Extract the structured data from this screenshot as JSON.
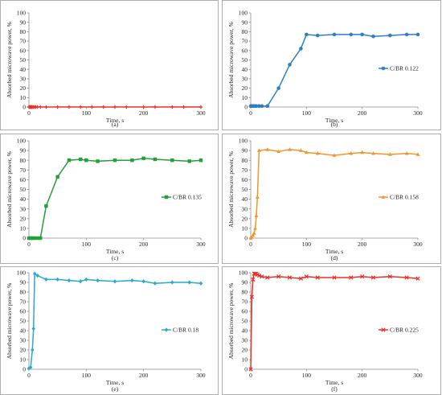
{
  "chart_data": [
    {
      "type": "line",
      "panel_label": "(a)",
      "xlabel": "Time, s",
      "ylabel": "Absorbed microwave power, %",
      "xlim": [
        0,
        300
      ],
      "ylim": [
        0,
        100
      ],
      "xticks": [
        0,
        100,
        200,
        300
      ],
      "yticks": [
        0,
        10,
        20,
        30,
        40,
        50,
        60,
        70,
        80,
        90,
        100
      ],
      "legend": null,
      "color": "#e8302a",
      "marker": "plus",
      "series": [
        {
          "x": [
            0,
            1,
            2,
            3,
            4,
            5,
            6,
            8,
            10,
            12,
            15,
            20,
            30,
            50,
            70,
            90,
            110,
            130,
            150,
            170,
            200,
            220,
            250,
            270,
            300
          ],
          "values": [
            0,
            0,
            0,
            0,
            0,
            0,
            0,
            0,
            0,
            0,
            0,
            0,
            0,
            0,
            0,
            0,
            0,
            0,
            0,
            0,
            0,
            0,
            0,
            0,
            0
          ]
        }
      ]
    },
    {
      "type": "line",
      "panel_label": "(b)",
      "xlabel": "Time, s",
      "ylabel": "Absorbed microwave power, %",
      "xlim": [
        0,
        300
      ],
      "ylim": [
        0,
        100
      ],
      "xticks": [
        0,
        100,
        200,
        300
      ],
      "yticks": [
        0,
        10,
        20,
        30,
        40,
        50,
        60,
        70,
        80,
        90,
        100
      ],
      "legend": "C/BR 0.122",
      "color": "#2e7fc2",
      "marker": "circle",
      "series": [
        {
          "name": "C/BR 0.122",
          "x": [
            0,
            2,
            4,
            6,
            8,
            10,
            15,
            20,
            30,
            50,
            70,
            90,
            100,
            120,
            150,
            180,
            200,
            220,
            250,
            280,
            300
          ],
          "values": [
            1,
            1,
            1,
            1,
            1,
            1,
            1,
            1,
            1,
            20,
            45,
            62,
            77,
            76,
            77,
            77,
            77,
            75,
            76,
            77,
            77
          ]
        }
      ]
    },
    {
      "type": "line",
      "panel_label": "(c)",
      "xlabel": "Time, s",
      "ylabel": "Absorbed microwave power, %",
      "xlim": [
        0,
        300
      ],
      "ylim": [
        0,
        100
      ],
      "xticks": [
        0,
        100,
        200,
        300
      ],
      "yticks": [
        0,
        10,
        20,
        30,
        40,
        50,
        60,
        70,
        80,
        90,
        100
      ],
      "legend": "C/BR 0.135",
      "color": "#22a03a",
      "marker": "square",
      "series": [
        {
          "name": "C/BR 0.135",
          "x": [
            0,
            3,
            6,
            10,
            15,
            20,
            30,
            50,
            70,
            90,
            100,
            120,
            150,
            180,
            200,
            220,
            250,
            280,
            300
          ],
          "values": [
            0,
            0,
            0,
            0,
            0,
            0,
            33,
            63,
            80,
            81,
            80,
            79,
            80,
            80,
            82,
            81,
            80,
            79,
            80
          ]
        }
      ]
    },
    {
      "type": "line",
      "panel_label": "(d)",
      "xlabel": "Time, s",
      "ylabel": "Absorbed microwave power, %",
      "xlim": [
        0,
        300
      ],
      "ylim": [
        0,
        100
      ],
      "xticks": [
        0,
        100,
        200,
        300
      ],
      "yticks": [
        0,
        10,
        20,
        30,
        40,
        50,
        60,
        70,
        80,
        90,
        100
      ],
      "legend": "C/BR 0.158",
      "color": "#f0952a",
      "marker": "triangle",
      "series": [
        {
          "name": "C/BR 0.158",
          "x": [
            0,
            2,
            4,
            6,
            8,
            10,
            12,
            15,
            30,
            50,
            70,
            90,
            100,
            120,
            150,
            180,
            200,
            220,
            250,
            280,
            300
          ],
          "values": [
            0,
            1,
            3,
            5,
            10,
            23,
            42,
            90,
            91,
            89,
            91,
            90,
            88,
            87,
            85,
            87,
            88,
            87,
            86,
            87,
            86
          ]
        }
      ]
    },
    {
      "type": "line",
      "panel_label": "(e)",
      "xlabel": "Time, s",
      "ylabel": "Absorbed microwave power, %",
      "xlim": [
        0,
        300
      ],
      "ylim": [
        0,
        100
      ],
      "xticks": [
        0,
        100,
        200,
        300
      ],
      "yticks": [
        0,
        10,
        20,
        30,
        40,
        50,
        60,
        70,
        80,
        90,
        100
      ],
      "legend": "C/BR 0.18",
      "color": "#27aacd",
      "marker": "diamond",
      "series": [
        {
          "name": "C/BR 0.18",
          "x": [
            0,
            3,
            6,
            8,
            10,
            15,
            30,
            50,
            70,
            90,
            100,
            120,
            150,
            180,
            200,
            220,
            250,
            280,
            300
          ],
          "values": [
            1,
            2,
            20,
            42,
            99,
            97,
            93,
            93,
            92,
            91,
            93,
            92,
            91,
            92,
            91,
            89,
            90,
            90,
            89
          ]
        }
      ]
    },
    {
      "type": "line",
      "panel_label": "(f)",
      "xlabel": "Time, s",
      "ylabel": "Absorbed microwave power, %",
      "xlim": [
        0,
        300
      ],
      "ylim": [
        0,
        100
      ],
      "xticks": [
        0,
        100,
        200,
        300
      ],
      "yticks": [
        0,
        10,
        20,
        30,
        40,
        50,
        60,
        70,
        80,
        90,
        100
      ],
      "legend": "C/BR 0.225",
      "color": "#e8302a",
      "marker": "x",
      "series": [
        {
          "name": "C/BR 0.225",
          "x": [
            0,
            2,
            4,
            6,
            8,
            10,
            12,
            15,
            20,
            30,
            50,
            70,
            90,
            100,
            120,
            150,
            180,
            200,
            220,
            250,
            280,
            300
          ],
          "values": [
            0,
            75,
            93,
            99,
            99,
            99,
            98,
            97,
            96,
            95,
            96,
            95,
            94,
            96,
            95,
            95,
            95,
            96,
            95,
            96,
            95,
            94
          ]
        }
      ]
    }
  ]
}
